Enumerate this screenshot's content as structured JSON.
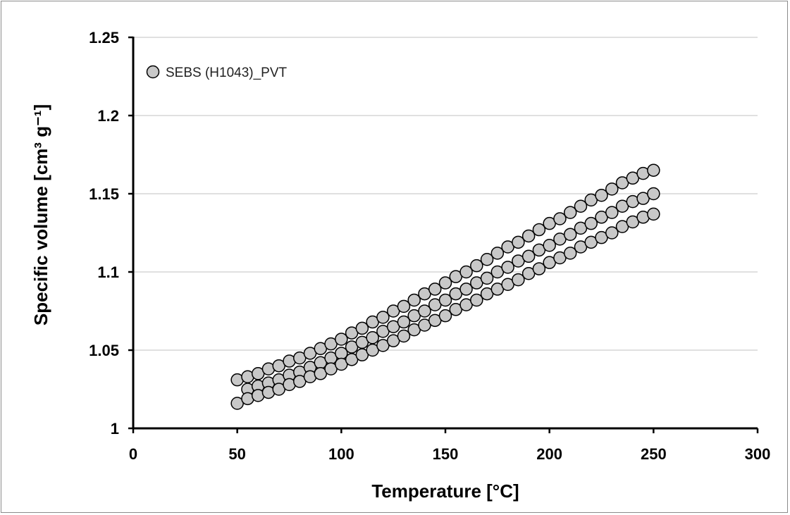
{
  "chart_data": {
    "type": "scatter",
    "title": "",
    "xlabel": "Temperature [°C]",
    "ylabel": "Specific volume [cm³ g⁻¹]",
    "xlim": [
      0,
      300
    ],
    "ylim": [
      1,
      1.25
    ],
    "xticks": [
      0,
      50,
      100,
      150,
      200,
      250,
      300
    ],
    "yticks": [
      1,
      1.05,
      1.1,
      1.15,
      1.2,
      1.25
    ],
    "xtick_labels": [
      "0",
      "50",
      "100",
      "150",
      "200",
      "250",
      "300"
    ],
    "ytick_labels": [
      "1",
      "1.05",
      "1.1",
      "1.15",
      "1.2",
      "1.25"
    ],
    "grid": "horizontal",
    "legend_position": "top-left",
    "marker_fill": "#c8c8c8",
    "marker_edge": "#000000",
    "gridline_color": "#c0c0c0",
    "series": [
      {
        "name": "SEBS (H1043)_PVT",
        "x": [
          50,
          55,
          60,
          65,
          70,
          75,
          80,
          85,
          90,
          95,
          100,
          105,
          110,
          115,
          120,
          125,
          130,
          135,
          140,
          145,
          150,
          155,
          160,
          165,
          170,
          175,
          180,
          185,
          190,
          195,
          200,
          205,
          210,
          215,
          220,
          225,
          230,
          235,
          240,
          245,
          250
        ],
        "y": [
          1.031,
          1.033,
          1.035,
          1.038,
          1.04,
          1.043,
          1.045,
          1.048,
          1.051,
          1.054,
          1.057,
          1.061,
          1.064,
          1.068,
          1.071,
          1.075,
          1.078,
          1.082,
          1.086,
          1.089,
          1.093,
          1.097,
          1.1,
          1.104,
          1.108,
          1.112,
          1.116,
          1.119,
          1.123,
          1.127,
          1.131,
          1.134,
          1.138,
          1.142,
          1.146,
          1.149,
          1.153,
          1.157,
          1.16,
          1.163,
          1.165
        ]
      },
      {
        "name": "",
        "x": [
          55,
          60,
          65,
          70,
          75,
          80,
          85,
          90,
          95,
          100,
          105,
          110,
          115,
          120,
          125,
          130,
          135,
          140,
          145,
          150,
          155,
          160,
          165,
          170,
          175,
          180,
          185,
          190,
          195,
          200,
          205,
          210,
          215,
          220,
          225,
          230,
          235,
          240,
          245,
          250
        ],
        "y": [
          1.025,
          1.027,
          1.029,
          1.031,
          1.034,
          1.036,
          1.039,
          1.042,
          1.045,
          1.048,
          1.052,
          1.055,
          1.058,
          1.062,
          1.065,
          1.068,
          1.072,
          1.075,
          1.079,
          1.082,
          1.086,
          1.089,
          1.093,
          1.096,
          1.1,
          1.103,
          1.107,
          1.11,
          1.114,
          1.117,
          1.121,
          1.124,
          1.128,
          1.131,
          1.135,
          1.138,
          1.142,
          1.145,
          1.147,
          1.15
        ]
      },
      {
        "name": "",
        "x": [
          50,
          55,
          60,
          65,
          70,
          75,
          80,
          85,
          90,
          95,
          100,
          105,
          110,
          115,
          120,
          125,
          130,
          135,
          140,
          145,
          150,
          155,
          160,
          165,
          170,
          175,
          180,
          185,
          190,
          195,
          200,
          205,
          210,
          215,
          220,
          225,
          230,
          235,
          240,
          245,
          250
        ],
        "y": [
          1.016,
          1.019,
          1.021,
          1.023,
          1.025,
          1.028,
          1.03,
          1.033,
          1.035,
          1.038,
          1.041,
          1.044,
          1.047,
          1.05,
          1.053,
          1.056,
          1.059,
          1.063,
          1.066,
          1.069,
          1.072,
          1.076,
          1.079,
          1.082,
          1.086,
          1.089,
          1.092,
          1.095,
          1.099,
          1.102,
          1.106,
          1.109,
          1.112,
          1.116,
          1.119,
          1.122,
          1.125,
          1.129,
          1.132,
          1.135,
          1.137
        ]
      }
    ]
  }
}
